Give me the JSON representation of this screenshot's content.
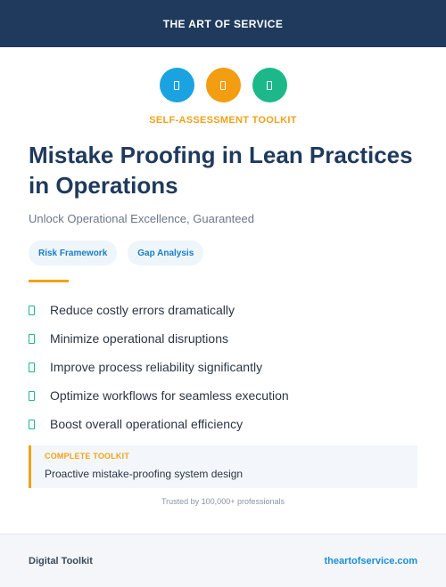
{
  "header": {
    "brand": "THE ART OF SERVICE"
  },
  "icons": [
    {
      "name": "icon-blue",
      "color": "#1aa3e0"
    },
    {
      "name": "icon-orange",
      "color": "#f29d12"
    },
    {
      "name": "icon-green",
      "color": "#1cb88a"
    }
  ],
  "eyebrow": "SELF-ASSESSMENT TOOLKIT",
  "title": "Mistake Proofing in Lean Practices in Operations",
  "subtitle": "Unlock Operational Excellence, Guaranteed",
  "tags": [
    "Risk Framework",
    "Gap Analysis"
  ],
  "benefits": [
    "Reduce costly errors dramatically",
    "Minimize operational disruptions",
    "Improve process reliability significantly",
    "Optimize workflows for seamless execution",
    "Boost overall operational efficiency"
  ],
  "callout": {
    "label": "COMPLETE TOOLKIT",
    "text": "Proactive mistake-proofing system design"
  },
  "trust_line": "Trusted by 100,000+ professionals",
  "footer": {
    "left": "Digital Toolkit",
    "right": "theartofservice.com"
  },
  "colors": {
    "navy": "#1f3a5c",
    "accent_orange": "#f0a21a",
    "accent_green": "#1cb88a",
    "link_blue": "#1a8fd6"
  }
}
